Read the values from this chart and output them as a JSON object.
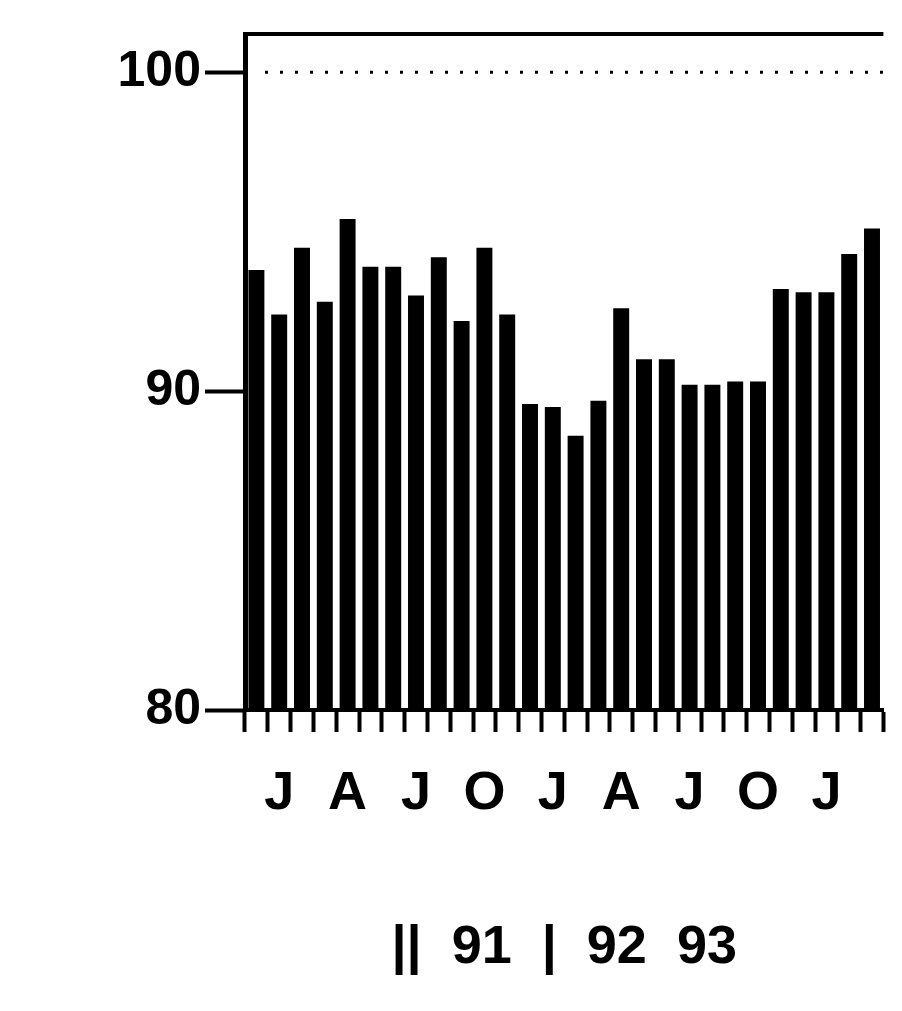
{
  "chart_data": {
    "type": "bar",
    "xlabel": "||  91  |  92  93",
    "categories": [
      null,
      "J",
      null,
      null,
      "A",
      null,
      null,
      "J",
      null,
      null,
      "O",
      null,
      null,
      "J",
      null,
      null,
      "A",
      null,
      null,
      "J",
      null,
      null,
      "O",
      null,
      null,
      "J",
      null,
      null
    ],
    "values": [
      93.8,
      92.4,
      94.5,
      92.8,
      95.4,
      93.9,
      93.9,
      93.0,
      94.2,
      92.2,
      94.5,
      92.4,
      89.6,
      89.5,
      88.6,
      89.7,
      92.6,
      91.0,
      91.0,
      90.2,
      90.2,
      90.3,
      90.3,
      93.2,
      93.1,
      93.1,
      94.3,
      95.1
    ],
    "color": "#000000",
    "ylim": [
      80,
      101.2
    ],
    "yticks": [
      80,
      90,
      100
    ],
    "grid": false,
    "legend": false,
    "ref_lines": [
      {
        "axis": "y",
        "value": 100,
        "line_style": "dotted"
      }
    ]
  }
}
